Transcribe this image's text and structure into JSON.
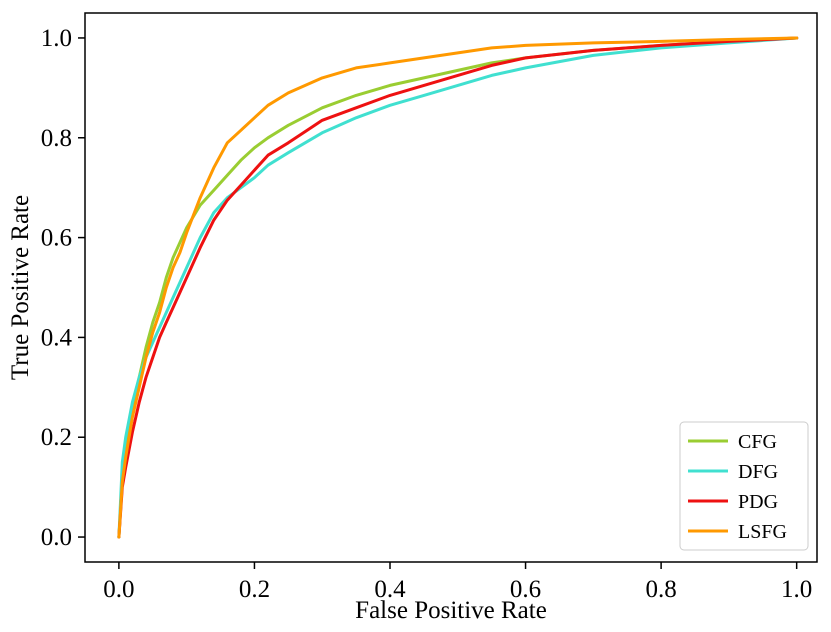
{
  "chart_data": {
    "type": "line",
    "title": "",
    "xlabel": "False Positive Rate",
    "ylabel": "True Positive Rate",
    "xlim": [
      -0.05,
      1.03
    ],
    "ylim": [
      -0.05,
      1.05
    ],
    "xticks": [
      0.0,
      0.2,
      0.4,
      0.6,
      0.8,
      1.0
    ],
    "yticks": [
      0.0,
      0.2,
      0.4,
      0.6,
      0.8,
      1.0
    ],
    "xtick_labels": [
      "0.0",
      "0.2",
      "0.4",
      "0.6",
      "0.8",
      "1.0"
    ],
    "ytick_labels": [
      "0.0",
      "0.2",
      "0.4",
      "0.6",
      "0.8",
      "1.0"
    ],
    "grid": false,
    "legend_position": "bottom-right",
    "series": [
      {
        "name": "CFG",
        "color": "#9acd32",
        "x": [
          0,
          0.005,
          0.01,
          0.02,
          0.03,
          0.04,
          0.05,
          0.06,
          0.07,
          0.08,
          0.09,
          0.1,
          0.12,
          0.14,
          0.16,
          0.18,
          0.2,
          0.22,
          0.25,
          0.3,
          0.35,
          0.4,
          0.45,
          0.5,
          0.55,
          0.6,
          0.7,
          0.8,
          0.9,
          1.0
        ],
        "y": [
          0,
          0.12,
          0.17,
          0.26,
          0.32,
          0.38,
          0.43,
          0.47,
          0.52,
          0.56,
          0.59,
          0.62,
          0.665,
          0.695,
          0.725,
          0.755,
          0.78,
          0.8,
          0.825,
          0.86,
          0.885,
          0.905,
          0.92,
          0.935,
          0.95,
          0.96,
          0.975,
          0.985,
          0.993,
          1.0
        ]
      },
      {
        "name": "DFG",
        "color": "#40e0d0",
        "x": [
          0,
          0.005,
          0.01,
          0.02,
          0.03,
          0.04,
          0.05,
          0.06,
          0.07,
          0.08,
          0.09,
          0.1,
          0.12,
          0.14,
          0.16,
          0.18,
          0.2,
          0.22,
          0.25,
          0.3,
          0.35,
          0.4,
          0.45,
          0.5,
          0.55,
          0.6,
          0.7,
          0.8,
          0.9,
          1.0
        ],
        "y": [
          0,
          0.15,
          0.2,
          0.27,
          0.32,
          0.36,
          0.39,
          0.42,
          0.45,
          0.48,
          0.51,
          0.54,
          0.6,
          0.65,
          0.68,
          0.7,
          0.72,
          0.745,
          0.77,
          0.81,
          0.84,
          0.865,
          0.885,
          0.905,
          0.925,
          0.94,
          0.965,
          0.98,
          0.99,
          1.0
        ]
      },
      {
        "name": "PDG",
        "color": "#ee1111",
        "x": [
          0,
          0.005,
          0.01,
          0.02,
          0.03,
          0.04,
          0.05,
          0.06,
          0.07,
          0.08,
          0.09,
          0.1,
          0.12,
          0.14,
          0.16,
          0.18,
          0.2,
          0.22,
          0.25,
          0.3,
          0.35,
          0.4,
          0.45,
          0.5,
          0.55,
          0.6,
          0.7,
          0.8,
          0.9,
          1.0
        ],
        "y": [
          0,
          0.1,
          0.14,
          0.21,
          0.27,
          0.32,
          0.36,
          0.4,
          0.43,
          0.46,
          0.49,
          0.52,
          0.58,
          0.635,
          0.675,
          0.705,
          0.735,
          0.765,
          0.79,
          0.835,
          0.86,
          0.885,
          0.905,
          0.925,
          0.945,
          0.96,
          0.975,
          0.985,
          0.993,
          1.0
        ]
      },
      {
        "name": "LSFG",
        "color": "#ff9900",
        "x": [
          0,
          0.005,
          0.01,
          0.02,
          0.03,
          0.04,
          0.05,
          0.06,
          0.07,
          0.08,
          0.09,
          0.1,
          0.12,
          0.14,
          0.16,
          0.18,
          0.2,
          0.22,
          0.25,
          0.3,
          0.35,
          0.4,
          0.45,
          0.5,
          0.55,
          0.6,
          0.7,
          0.8,
          0.9,
          1.0
        ],
        "y": [
          0,
          0.11,
          0.16,
          0.24,
          0.3,
          0.36,
          0.41,
          0.45,
          0.5,
          0.54,
          0.57,
          0.61,
          0.68,
          0.74,
          0.79,
          0.815,
          0.84,
          0.865,
          0.89,
          0.92,
          0.94,
          0.95,
          0.96,
          0.97,
          0.98,
          0.985,
          0.99,
          0.993,
          0.997,
          1.0
        ]
      }
    ]
  }
}
